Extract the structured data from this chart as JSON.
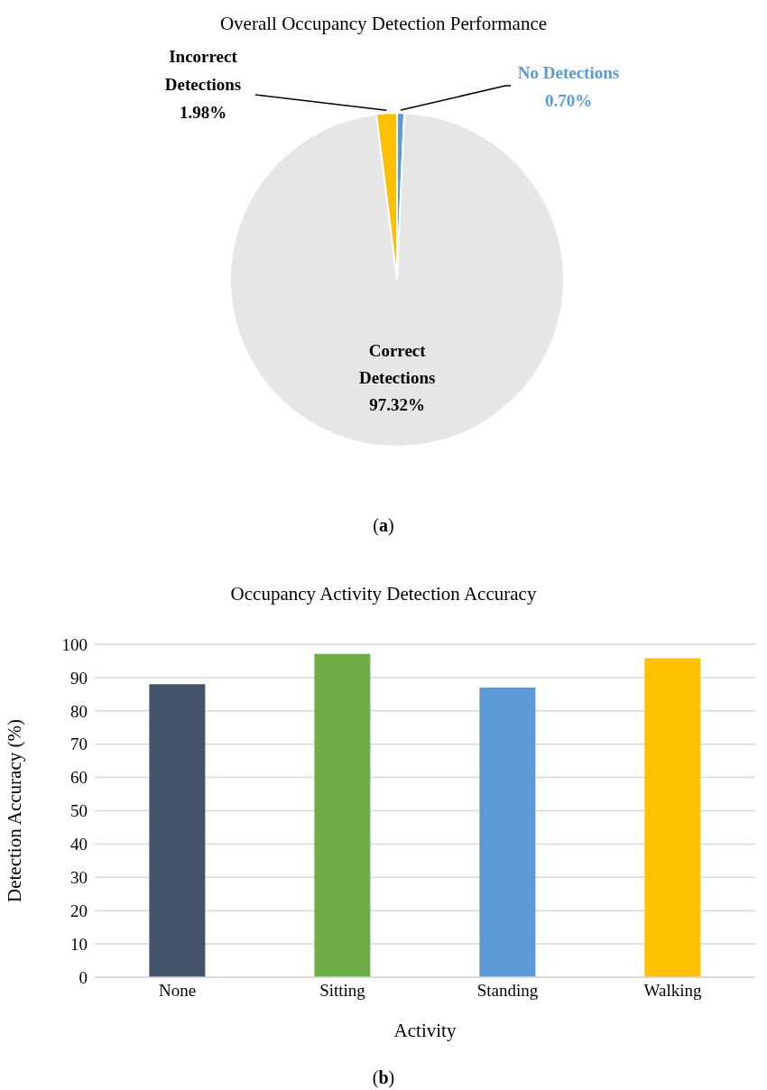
{
  "chart_data": [
    {
      "type": "pie",
      "title": "Overall Occupancy Detection Performance",
      "categories": [
        "No Detections",
        "Correct Detections",
        "Incorrect Detections"
      ],
      "values": [
        0.7,
        97.32,
        1.98
      ],
      "colors": [
        "#5b9bd5",
        "#e6e6e6",
        "#ffc000"
      ],
      "value_labels": [
        "0.70%",
        "97.32%",
        "1.98%"
      ],
      "annotations": [
        "(a)"
      ]
    },
    {
      "type": "bar",
      "title": "Occupancy Activity Detection Accuracy",
      "xlabel": "Activity",
      "ylabel": "Detection Accuracy (%)",
      "categories": [
        "None",
        "Sitting",
        "Standing",
        "Walking"
      ],
      "values": [
        88.0,
        97.1,
        87.0,
        95.8
      ],
      "colors": [
        "#44546a",
        "#70ad47",
        "#5b9bd5",
        "#ffc000"
      ],
      "ylim": [
        0,
        100
      ],
      "yticks": [
        0,
        10,
        20,
        30,
        40,
        50,
        60,
        70,
        80,
        90,
        100
      ],
      "grid": "y",
      "annotations": [
        "(b)"
      ]
    }
  ]
}
